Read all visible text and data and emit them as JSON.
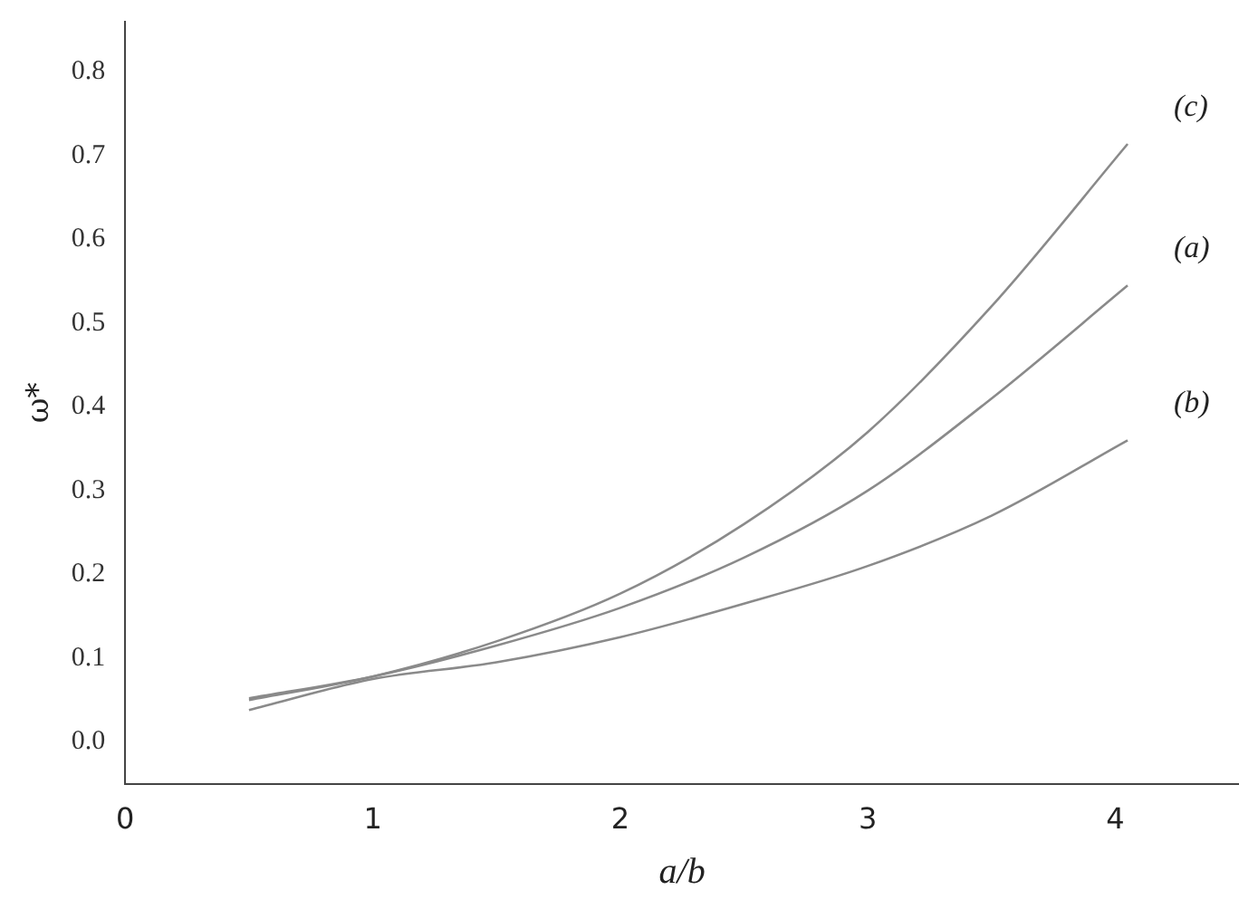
{
  "chart_data": {
    "type": "line",
    "xlabel": "a/b",
    "ylabel": "ω*",
    "xlim": [
      0,
      4.5
    ],
    "ylim": [
      -0.05,
      0.86
    ],
    "xticks": [
      0,
      1,
      2,
      3,
      4
    ],
    "yticks": [
      {
        "value": 0,
        "label": "0.0"
      },
      0.1,
      0.2,
      0.3,
      0.4,
      0.5,
      0.6,
      0.7,
      0.8
    ],
    "grid": false,
    "legend": false,
    "marker": "none",
    "line_style": "solid",
    "x": [
      0.5,
      1,
      1.5,
      2,
      2.5,
      3,
      3.5,
      4.05
    ],
    "series": [
      {
        "name": "(c)",
        "color": "#8a8a8a",
        "values": [
          0.05,
          0.078,
          0.12,
          0.177,
          0.26,
          0.37,
          0.52,
          0.714
        ]
      },
      {
        "name": "(a)",
        "color": "#8a8a8a",
        "values": [
          0.052,
          0.078,
          0.115,
          0.16,
          0.22,
          0.3,
          0.41,
          0.545
        ]
      },
      {
        "name": "(b)",
        "color": "#8a8a8a",
        "values": [
          0.038,
          0.075,
          0.095,
          0.125,
          0.165,
          0.21,
          0.27,
          0.36
        ]
      }
    ]
  }
}
